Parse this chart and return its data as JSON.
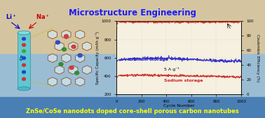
{
  "title": "Microstructure Engineering",
  "title_color": "#1a1aff",
  "bottom_text": "ZnSe/CoSe nanodots doped core-shell porous carbon nanotubes",
  "bottom_text_color": "#ffff00",
  "bg_mid": "#9bbdd4",
  "bg_top": "#d4c5a0",
  "bg_bot": "#4a7fb5",
  "chart_bg": "#f5f0e0",
  "cycles": 1000,
  "xlabel": "Cycle Number",
  "ylabel_left": "Specific Capacity (mAh g⁻¹)",
  "ylabel_right": "Coulombic Efficiency (%)",
  "rate_label": "5 A g⁻¹",
  "lithium_label": "Lithium storage",
  "sodium_label": "Sodium storage",
  "lithium_line_color": "#2222cc",
  "sodium_line_color": "#cc2222",
  "ce_line_color": "#228B22",
  "ce_dots_color": "#cc0000",
  "ylim_left": [
    200,
    1000
  ],
  "ylim_right": [
    0,
    100
  ],
  "yticks_left": [
    200,
    400,
    600,
    800,
    1000
  ],
  "yticks_right": [
    0,
    20,
    40,
    60,
    80,
    100
  ],
  "xticks": [
    0,
    200,
    400,
    600,
    800,
    1000
  ],
  "tube_face": "#5bc8d4",
  "tube_edge": "#2a8a9a",
  "hex_face": "#d0e8f0",
  "hex_edge": "#993300",
  "li_color": "#0000cc",
  "na_color": "#cc0000"
}
